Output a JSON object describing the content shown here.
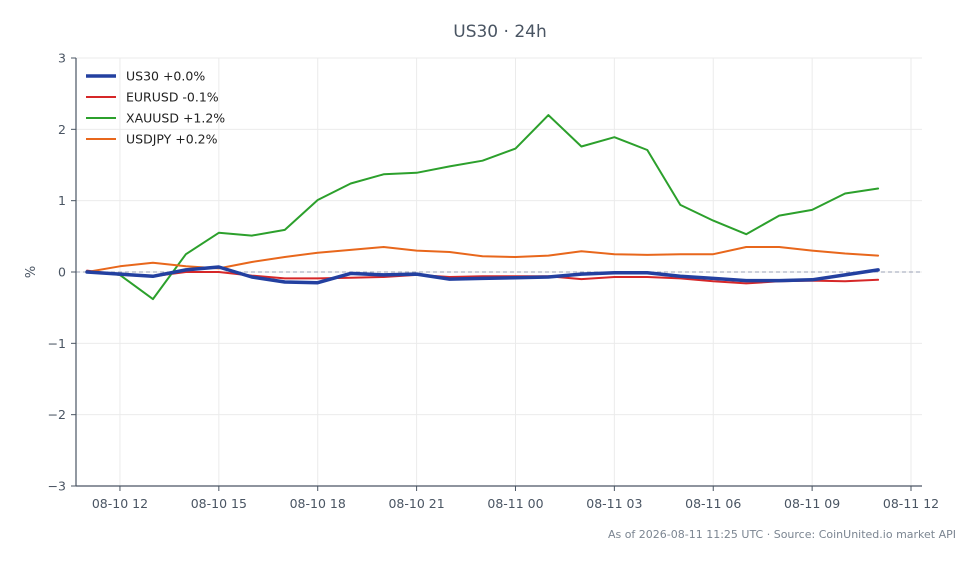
{
  "chart_data": {
    "type": "line",
    "title": "US30 · 24h",
    "xlabel": "",
    "ylabel": "%",
    "ylim": [
      -3,
      3
    ],
    "yticks": [
      3,
      2,
      1,
      0,
      -1,
      -2,
      -3
    ],
    "ytick_labels": [
      "3",
      "2",
      "1",
      "0",
      "−1",
      "−2",
      "−3"
    ],
    "xlim": [
      "08-10 10:40",
      "08-11 12:20"
    ],
    "xticks": [
      "08-10 12",
      "08-10 15",
      "08-10 18",
      "08-10 21",
      "08-11 00",
      "08-11 03",
      "08-11 06",
      "08-11 09",
      "08-11 12"
    ],
    "x": [
      "08-10 11:00",
      "08-10 12:00",
      "08-10 13:00",
      "08-10 14:00",
      "08-10 15:00",
      "08-10 16:00",
      "08-10 17:00",
      "08-10 18:00",
      "08-10 19:00",
      "08-10 20:00",
      "08-10 21:00",
      "08-10 22:00",
      "08-10 23:00",
      "08-11 00:00",
      "08-11 01:00",
      "08-11 02:00",
      "08-11 03:00",
      "08-11 04:00",
      "08-11 05:00",
      "08-11 06:00",
      "08-11 07:00",
      "08-11 08:00",
      "08-11 09:00",
      "08-11 10:00",
      "08-11 11:00"
    ],
    "grid": true,
    "zero_line": 0,
    "legend_position": "top-left",
    "series": [
      {
        "name": "US30 +0.0%",
        "color": "#2340a0",
        "width": 3.5,
        "values": [
          0.0,
          -0.03,
          -0.06,
          0.03,
          0.07,
          -0.07,
          -0.14,
          -0.15,
          -0.02,
          -0.04,
          -0.03,
          -0.1,
          -0.09,
          -0.08,
          -0.07,
          -0.03,
          -0.01,
          -0.01,
          -0.06,
          -0.09,
          -0.12,
          -0.12,
          -0.11,
          -0.04,
          0.03
        ]
      },
      {
        "name": "EURUSD -0.1%",
        "color": "#d62728",
        "width": 2,
        "values": [
          0.02,
          -0.04,
          -0.06,
          0.0,
          0.0,
          -0.05,
          -0.09,
          -0.09,
          -0.08,
          -0.07,
          -0.04,
          -0.07,
          -0.06,
          -0.06,
          -0.06,
          -0.1,
          -0.07,
          -0.07,
          -0.09,
          -0.13,
          -0.16,
          -0.13,
          -0.12,
          -0.13,
          -0.11
        ]
      },
      {
        "name": "XAUUSD +1.2%",
        "color": "#2ca02c",
        "width": 2,
        "values": [
          0.01,
          -0.04,
          -0.38,
          0.25,
          0.55,
          0.51,
          0.59,
          1.01,
          1.24,
          1.37,
          1.39,
          1.48,
          1.56,
          1.73,
          2.2,
          1.76,
          1.89,
          1.71,
          0.94,
          0.72,
          0.53,
          0.79,
          0.87,
          1.1,
          1.17
        ]
      },
      {
        "name": "USDJPY +0.2%",
        "color": "#e8671c",
        "width": 2,
        "values": [
          0.0,
          0.08,
          0.13,
          0.08,
          0.05,
          0.14,
          0.21,
          0.27,
          0.31,
          0.35,
          0.3,
          0.28,
          0.22,
          0.21,
          0.23,
          0.29,
          0.25,
          0.24,
          0.25,
          0.25,
          0.35,
          0.35,
          0.3,
          0.26,
          0.23
        ]
      }
    ],
    "footer": "As of 2026-08-11 11:25 UTC · Source: CoinUnited.io market API"
  }
}
